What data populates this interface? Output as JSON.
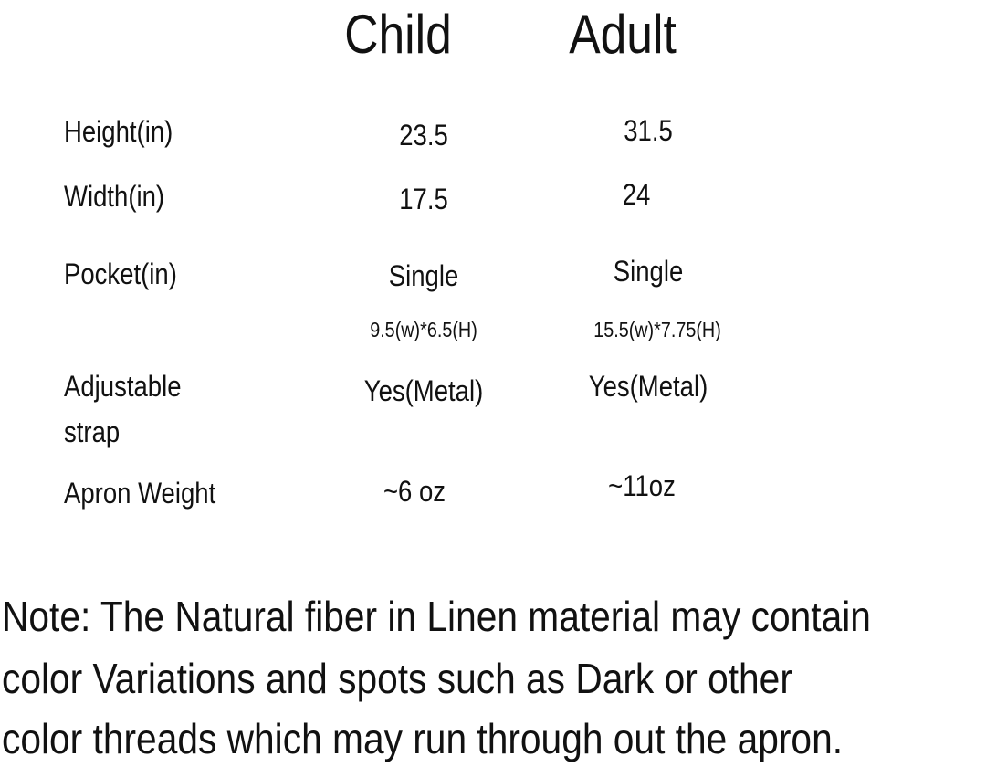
{
  "columns": {
    "child": "Child",
    "adult": "Adult"
  },
  "rows": [
    {
      "label": "Height(in)",
      "child": "23.5",
      "adult": "31.5"
    },
    {
      "label": "Width(in)",
      "child": "17.5",
      "adult": "24"
    },
    {
      "label": "Pocket(in)",
      "child": "Single",
      "adult": "Single",
      "child_detail": "9.5(w)*6.5(H)",
      "adult_detail": "15.5(w)*7.75(H)"
    },
    {
      "label_line1": "Adjustable",
      "label_line2": "strap",
      "child": "Yes(Metal)",
      "adult": "Yes(Metal)"
    },
    {
      "label": "Apron Weight",
      "child": "~6 oz",
      "adult": "~11oz"
    }
  ],
  "note": {
    "lines": [
      "Note: The Natural fiber in Linen material may contain",
      "color Variations and spots such as Dark or other",
      "color threads which may run through out the apron."
    ]
  }
}
